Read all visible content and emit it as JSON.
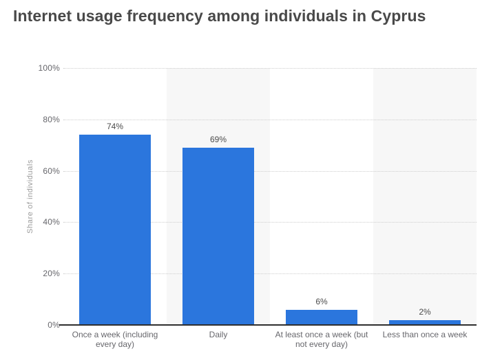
{
  "chart_data": {
    "type": "bar",
    "title": "Internet usage frequency among individuals in Cyprus",
    "categories": [
      "Once a week (including every day)",
      "Daily",
      "At least once a week (but not every day)",
      "Less than once a week"
    ],
    "values": [
      74,
      69,
      6,
      2
    ],
    "value_labels": [
      "74%",
      "69%",
      "6%",
      "2%"
    ],
    "xlabel": "",
    "ylabel": "Share of individuals",
    "ylim": [
      0,
      100
    ],
    "ytick_values": [
      0,
      20,
      40,
      60,
      80,
      100
    ],
    "yticks": [
      "0%",
      "20%",
      "40%",
      "60%",
      "80%",
      "100%"
    ],
    "grid": "horizontal dotted lines, alternating vertical background bands",
    "legend": "none",
    "colors": {
      "bar": "#2b76dd",
      "title_text": "#494949",
      "value_label_text": "#4b4b4b",
      "axis_label_text": "#66666b",
      "y_axis_title_text": "#9b9b9b",
      "band_alt": "#f7f7f7",
      "gridline": "#cdcdcd",
      "axis_line": "#2e2e2e",
      "background": "#ffffff"
    }
  }
}
